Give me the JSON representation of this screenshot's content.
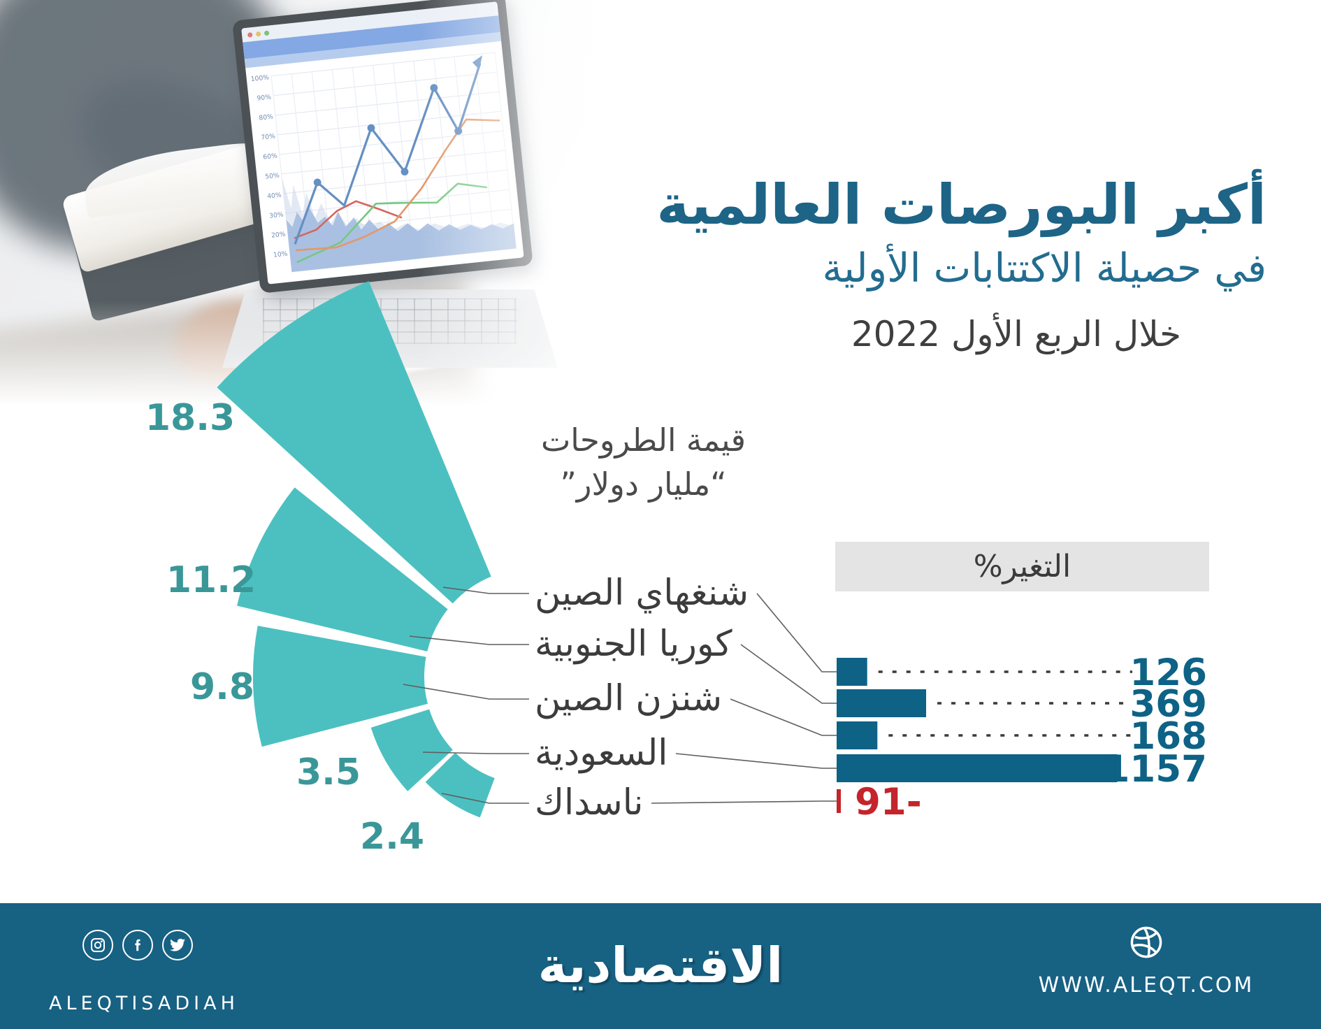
{
  "header": {
    "title": "أكبر البورصات العالمية",
    "subtitle": "في حصيلة الاكتتابات الأولية",
    "period": "خلال الربع الأول 2022"
  },
  "fan_section": {
    "value_label_line1": "قيمة الطروحات",
    "value_label_line2": "“مليار دولار”"
  },
  "change_section": {
    "header": "التغير%"
  },
  "chart_data": {
    "type": "bar",
    "title": "أكبر البورصات العالمية في حصيلة الاكتتابات الأولية خلال الربع الأول 2022",
    "direction": "rtl",
    "categories": [
      "شنغهاي الصين",
      "كوريا الجنوبية",
      "شنزن الصين",
      "السعودية",
      "ناسداك"
    ],
    "series": [
      {
        "name": "قيمة الطروحات (مليار دولار)",
        "display": "radial-fan",
        "values": [
          18.3,
          11.2,
          9.8,
          3.5,
          2.4
        ],
        "labels": [
          "18.3",
          "11.2",
          "9.8",
          "3.5",
          "2.4"
        ],
        "color": "#4cc0c0",
        "label_color": "#3a9798"
      },
      {
        "name": "التغير %",
        "display": "horizontal-bars",
        "values": [
          126,
          369,
          168,
          1157,
          -91
        ],
        "labels": [
          "126",
          "369",
          "168",
          "1157",
          "91-"
        ],
        "color": "#0d6286",
        "negative_color": "#c4242b",
        "leader_color": "#3a3a3a"
      }
    ],
    "legend_position": "none",
    "grid": false
  },
  "photo": {
    "laptop_axis_labels": [
      "100%",
      "90%",
      "80%",
      "70%",
      "60%",
      "50%",
      "40%",
      "30%",
      "20%",
      "10%"
    ]
  },
  "footer": {
    "brand_latin": "ALEQTISADIAH",
    "logo_arabic": "الاقتصادية",
    "website": "WWW.ALEQT.COM"
  }
}
